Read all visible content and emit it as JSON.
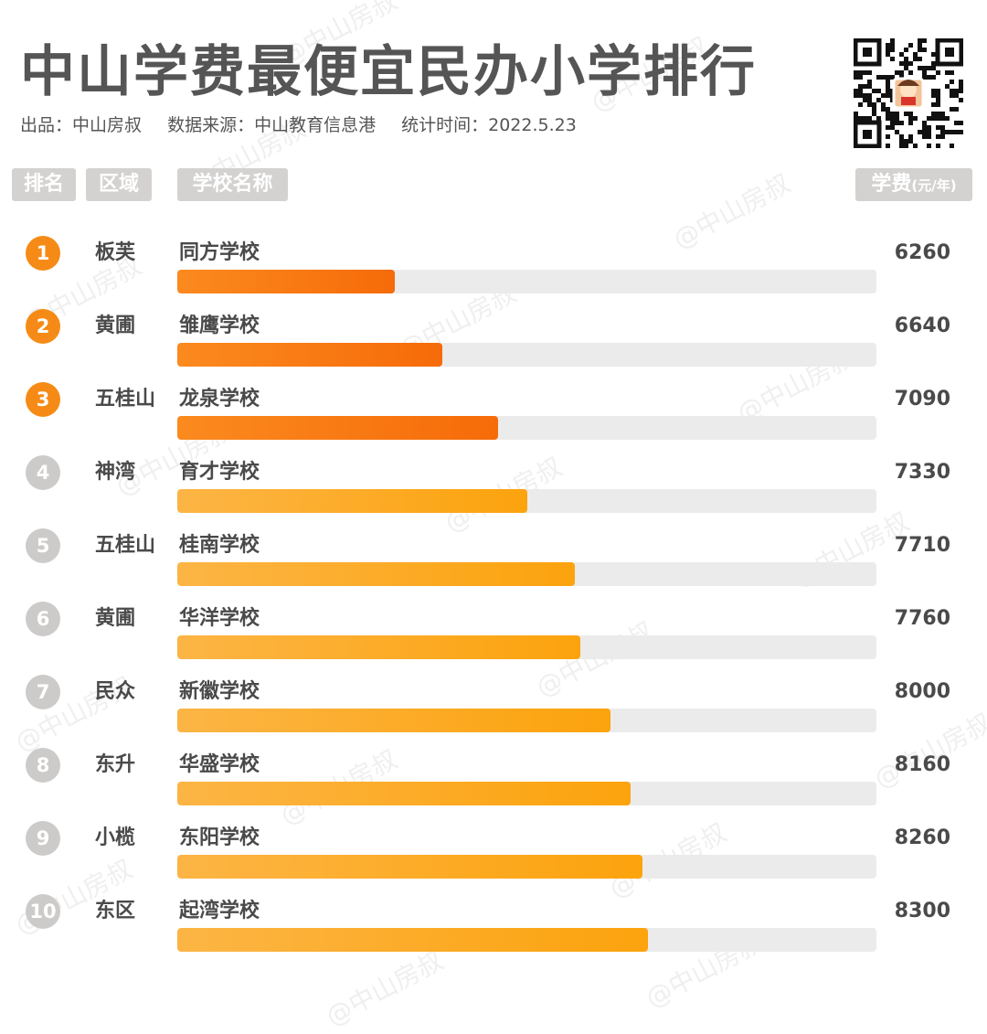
{
  "header": {
    "title": "中山学费最便宜民办小学排行",
    "producer": "出品：中山房叔",
    "source": "数据来源：中山教育信息港",
    "stat_time": "统计时间：2022.5.23"
  },
  "columns": {
    "rank": "排名",
    "area": "区域",
    "school": "学校名称",
    "fee": "学费",
    "fee_unit": "(元/年)"
  },
  "watermark": "@中山房叔",
  "colors": {
    "top_rank": "#f58b16",
    "top_bar": "#f66b09",
    "other_rank": "#cdcbca",
    "other_bar": "#fca30d",
    "track": "#ebebeb"
  },
  "chart_data": {
    "type": "bar",
    "orientation": "horizontal",
    "title": "中山学费最便宜民办小学排行",
    "unit": "元/年",
    "rows": [
      {
        "rank": "1",
        "area": "板芙",
        "school": "同方学校",
        "fee": 6260
      },
      {
        "rank": "2",
        "area": "黄圃",
        "school": "雏鹰学校",
        "fee": 6640
      },
      {
        "rank": "3",
        "area": "五桂山",
        "school": "龙泉学校",
        "fee": 7090
      },
      {
        "rank": "4",
        "area": "神湾",
        "school": "育才学校",
        "fee": 7330
      },
      {
        "rank": "5",
        "area": "五桂山",
        "school": "桂南学校",
        "fee": 7710
      },
      {
        "rank": "6",
        "area": "黄圃",
        "school": "华洋学校",
        "fee": 7760
      },
      {
        "rank": "7",
        "area": "民众",
        "school": "新徽学校",
        "fee": 8000
      },
      {
        "rank": "8",
        "area": "东升",
        "school": "华盛学校",
        "fee": 8160
      },
      {
        "rank": "9",
        "area": "小榄",
        "school": "东阳学校",
        "fee": 8260
      },
      {
        "rank": "10",
        "area": "东区",
        "school": "起湾学校",
        "fee": 8300
      }
    ],
    "xlim": [
      4500,
      10150
    ]
  }
}
